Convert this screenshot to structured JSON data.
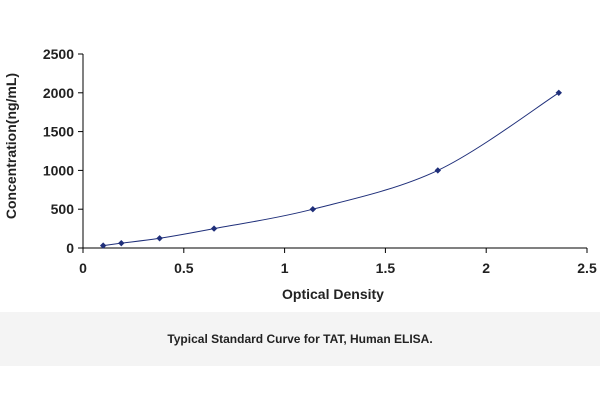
{
  "caption": "Typical Standard Curve for TAT, Human ELISA.",
  "chart_data": {
    "type": "scatter",
    "title": "",
    "xlabel": "Optical Density",
    "ylabel": "Concentration(ng/mL)",
    "xlim": [
      0,
      2.5
    ],
    "ylim": [
      0,
      2500
    ],
    "xticks": [
      0,
      0.5,
      1,
      1.5,
      2,
      2.5
    ],
    "xtick_labels": [
      "0",
      "0.5",
      "1",
      "1.5",
      "2",
      "2.5"
    ],
    "yticks": [
      0,
      500,
      1000,
      1500,
      2000,
      2500
    ],
    "ytick_labels": [
      "0",
      "500",
      "1000",
      "1500",
      "2000",
      "2500"
    ],
    "grid": false,
    "legend": "none",
    "fit_curve": true,
    "series": [
      {
        "x": [
          0.1,
          0.19,
          0.38,
          0.65,
          1.14,
          1.76,
          2.36
        ],
        "y": [
          31.25,
          62.5,
          125,
          250,
          500,
          1000,
          2000
        ]
      }
    ],
    "colors": {
      "marker": "#1f2f7a",
      "curve": "#1f2f7a",
      "axis": "#000000"
    }
  }
}
